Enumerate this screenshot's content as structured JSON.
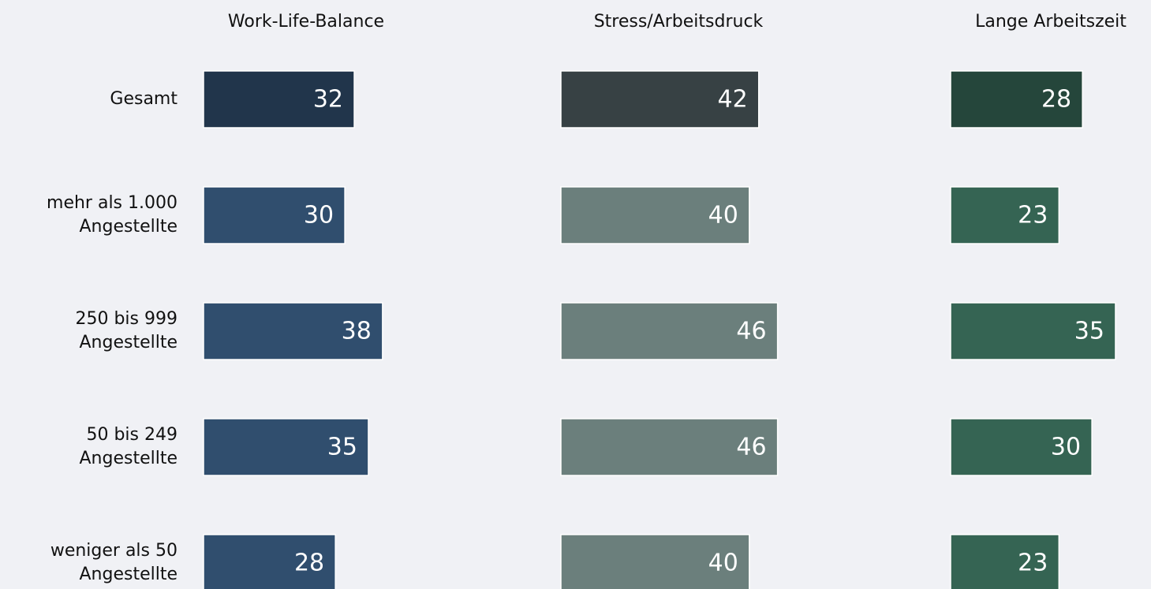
{
  "chart_data": {
    "type": "bar",
    "orientation": "horizontal",
    "categories": [
      [
        "Gesamt"
      ],
      [
        "mehr als 1.000",
        "Angestellte"
      ],
      [
        "250 bis 999",
        "Angestellte"
      ],
      [
        "50 bis 249",
        "Angestellte"
      ],
      [
        "weniger als 50",
        "Angestellte"
      ]
    ],
    "series": [
      {
        "name": "Work-Life-Balance",
        "colors": [
          "#21354b",
          "#304e6e",
          "#304e6e",
          "#304e6e",
          "#304e6e"
        ],
        "values": [
          32,
          30,
          38,
          35,
          28
        ]
      },
      {
        "name": "Stress/Arbeitsdruck",
        "colors": [
          "#374144",
          "#6b7f7c",
          "#6b7f7c",
          "#6b7f7c",
          "#6b7f7c"
        ],
        "values": [
          42,
          40,
          46,
          46,
          40
        ]
      },
      {
        "name": "Lange Arbeitszeit",
        "colors": [
          "#25463b",
          "#356453",
          "#356453",
          "#356453",
          "#356453"
        ],
        "values": [
          28,
          23,
          35,
          30,
          23
        ]
      }
    ]
  }
}
